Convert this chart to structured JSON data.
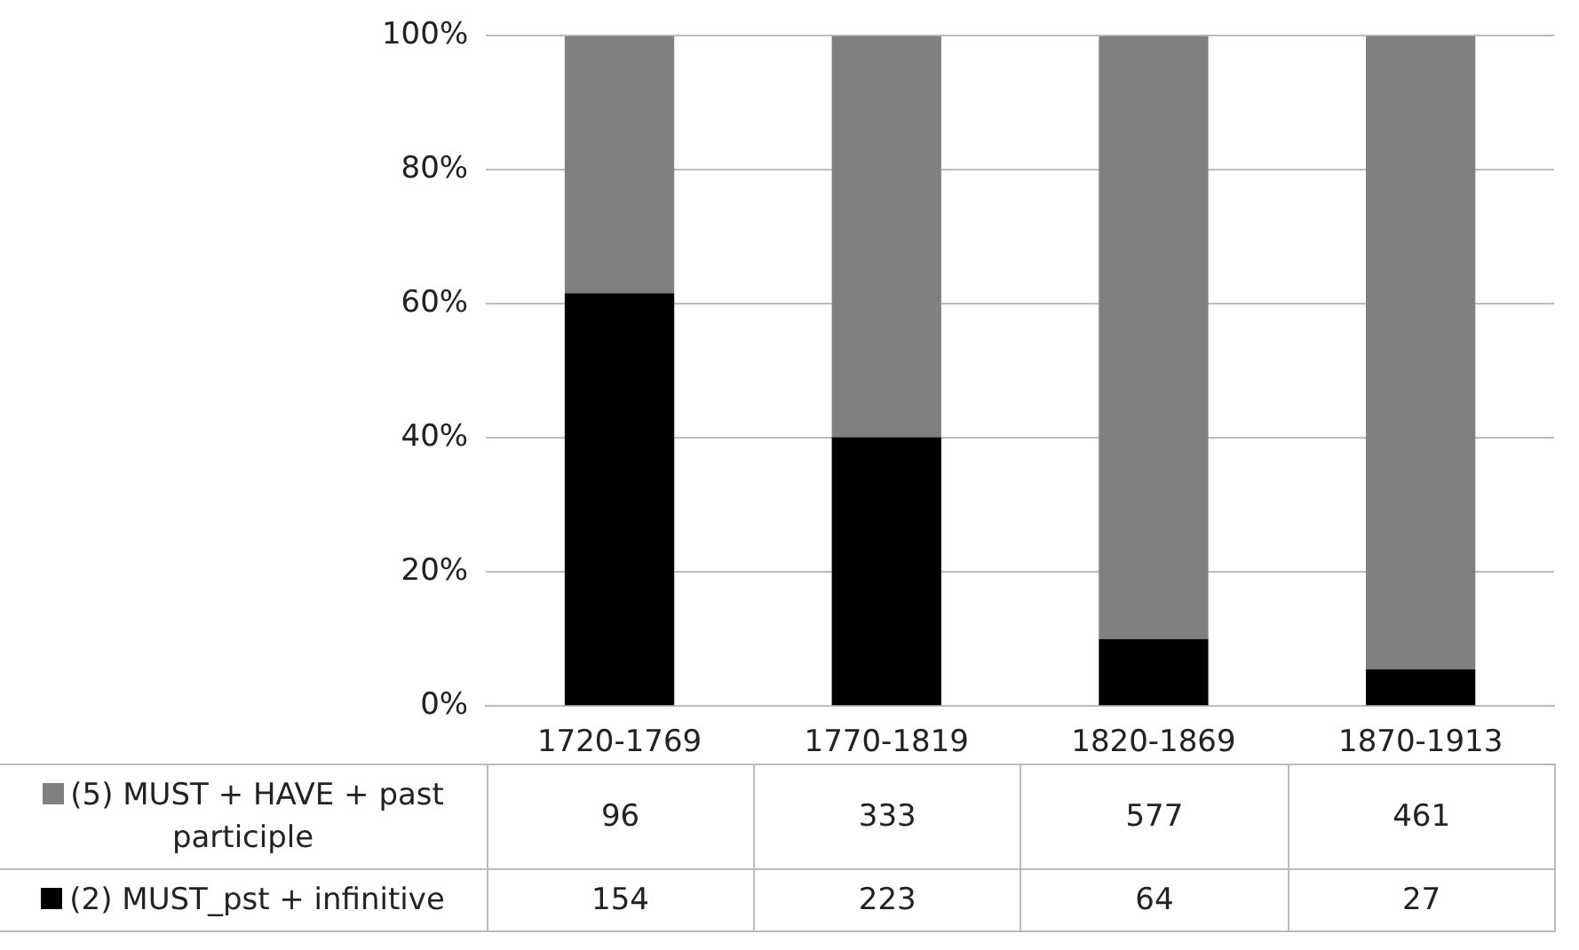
{
  "chart_data": {
    "type": "bar",
    "stacked": true,
    "categories": [
      "1720-1769",
      "1770-1819",
      "1820-1869",
      "1870-1913"
    ],
    "series": [
      {
        "name": "(2) MUST_pst + infinitive",
        "color": "#000000",
        "values": [
          61.6,
          40.1,
          10,
          5.5
        ]
      },
      {
        "name": "(5) MUST + HAVE + past participle",
        "color": "#808080",
        "values": [
          38.4,
          59.9,
          90,
          94.5
        ]
      }
    ],
    "annotations": [
      "96",
      "333",
      "577",
      "461",
      "154",
      "223",
      "64",
      "27"
    ],
    "ylim": [
      0,
      100
    ],
    "yticks": [
      {
        "value": 0,
        "label": "0%"
      },
      {
        "value": 20,
        "label": "20%"
      },
      {
        "value": 40,
        "label": "40%"
      },
      {
        "value": 60,
        "label": "60%"
      },
      {
        "value": 80,
        "label": "80%"
      },
      {
        "value": 100,
        "label": "100%"
      }
    ],
    "grid": "y",
    "legend": "bottom"
  }
}
